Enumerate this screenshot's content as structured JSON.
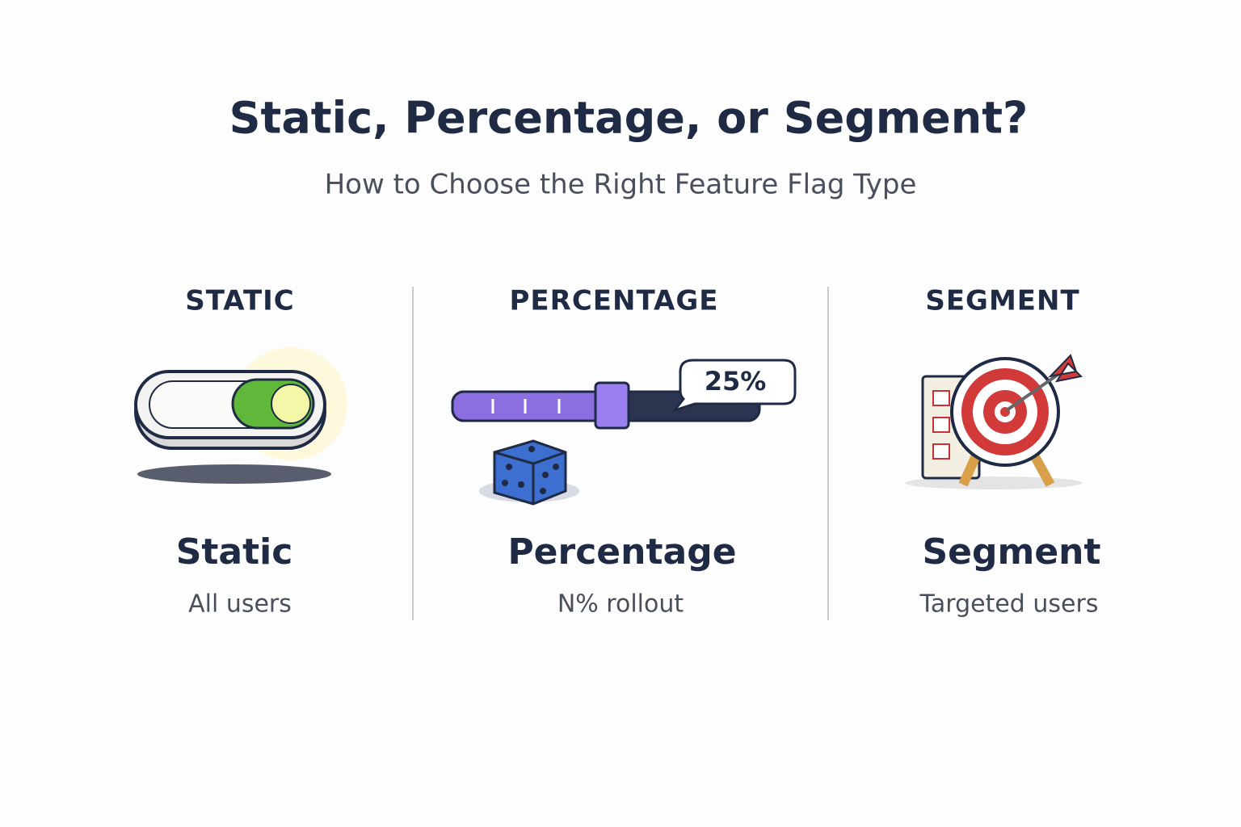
{
  "header": {
    "title": "Static, Percentage, or Segment?",
    "subtitle": "How to Choose the Right Feature Flag Type"
  },
  "columns": [
    {
      "heading": "STATIC",
      "label": "Static",
      "caption": "All users"
    },
    {
      "heading": "PERCENTAGE",
      "label": "Percentage",
      "caption": "N% rollout",
      "badge": "25%"
    },
    {
      "heading": "SEGMENT",
      "label": "Segment",
      "caption": "Targeted users"
    }
  ]
}
